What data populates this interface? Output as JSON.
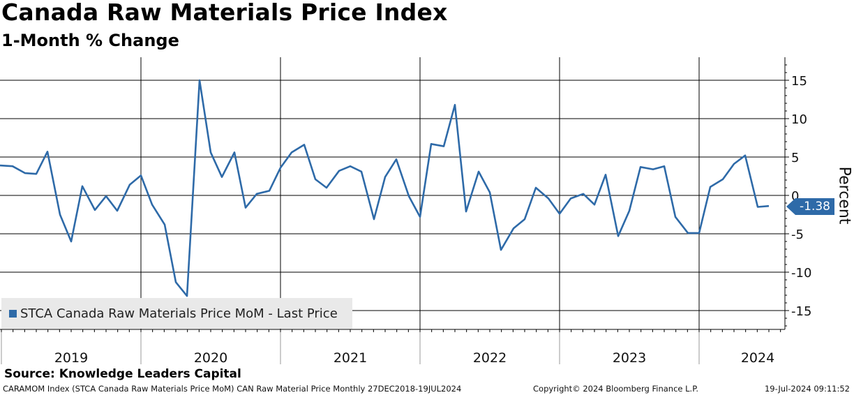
{
  "chart_data": {
    "type": "line",
    "title": "Canada Raw Materials Price Index",
    "subtitle": "1-Month % Change",
    "ylabel": "Percent",
    "ylim": [
      -18,
      18
    ],
    "yticks": [
      15,
      10,
      5,
      0,
      -5,
      -10,
      -15
    ],
    "ytick_labels": [
      "15",
      "10",
      "5",
      "0",
      "-5",
      "-10",
      "-15"
    ],
    "xlim": [
      2018.99,
      2024.62
    ],
    "year_boundaries": [
      2019,
      2020,
      2021,
      2022,
      2023,
      2024
    ],
    "year_labels": [
      {
        "label": "2019",
        "mid": 2019.5
      },
      {
        "label": "2020",
        "mid": 2020.5
      },
      {
        "label": "2021",
        "mid": 2021.5
      },
      {
        "label": "2022",
        "mid": 2022.5
      },
      {
        "label": "2023",
        "mid": 2023.5
      },
      {
        "label": "2024",
        "mid": 2024.42
      }
    ],
    "grid": true,
    "series": [
      {
        "name": "STCA Canada Raw Materials Price MoM - Last Price",
        "color": "#2e6aa8",
        "x": [
          2018.99,
          2019.08,
          2019.17,
          2019.25,
          2019.33,
          2019.42,
          2019.5,
          2019.58,
          2019.67,
          2019.75,
          2019.83,
          2019.92,
          2020.0,
          2020.08,
          2020.17,
          2020.25,
          2020.33,
          2020.42,
          2020.5,
          2020.58,
          2020.67,
          2020.75,
          2020.83,
          2020.92,
          2021.0,
          2021.08,
          2021.17,
          2021.25,
          2021.33,
          2021.42,
          2021.5,
          2021.58,
          2021.67,
          2021.75,
          2021.83,
          2021.92,
          2022.0,
          2022.08,
          2022.17,
          2022.25,
          2022.33,
          2022.42,
          2022.5,
          2022.58,
          2022.67,
          2022.75,
          2022.83,
          2022.92,
          2023.0,
          2023.08,
          2023.17,
          2023.25,
          2023.33,
          2023.42,
          2023.5,
          2023.58,
          2023.67,
          2023.75,
          2023.83,
          2023.92,
          2024.0,
          2024.08,
          2024.17,
          2024.25,
          2024.33,
          2024.42,
          2024.5
        ],
        "values": [
          3.9,
          3.8,
          2.9,
          2.8,
          5.7,
          -2.5,
          -6.0,
          1.2,
          -1.9,
          -0.1,
          -2.0,
          1.4,
          2.6,
          -1.2,
          -3.8,
          -11.3,
          -13.1,
          15.0,
          5.6,
          2.4,
          5.6,
          -1.6,
          0.2,
          0.6,
          3.6,
          5.6,
          6.6,
          2.1,
          1.0,
          3.2,
          3.8,
          3.1,
          -3.1,
          2.4,
          4.7,
          -0.1,
          -2.8,
          6.7,
          6.4,
          11.8,
          -2.1,
          3.1,
          0.4,
          -7.1,
          -4.3,
          -3.1,
          1.0,
          -0.4,
          -2.4,
          -0.4,
          0.2,
          -1.2,
          2.7,
          -5.3,
          -2.0,
          3.7,
          3.4,
          3.8,
          -2.8,
          -4.9,
          -4.9,
          1.1,
          2.1,
          4.1,
          5.2,
          -1.5,
          -1.38
        ]
      }
    ],
    "last_value_label": "-1.38",
    "legend_position": "bottom-left"
  },
  "legend": {
    "label": "STCA Canada Raw Materials Price MoM - Last Price"
  },
  "source": "Source: Knowledge Leaders Capital",
  "footer": {
    "left": "CARAMOM Index (STCA Canada Raw Materials Price MoM) CAN Raw Material Price  Monthly 27DEC2018-19JUL2024",
    "mid": "Copyright© 2024 Bloomberg Finance L.P.",
    "right": "19-Jul-2024 09:11:52"
  },
  "colors": {
    "line": "#2e6aa8",
    "grid": "#000000",
    "legend_bg": "#e9e9e9"
  }
}
